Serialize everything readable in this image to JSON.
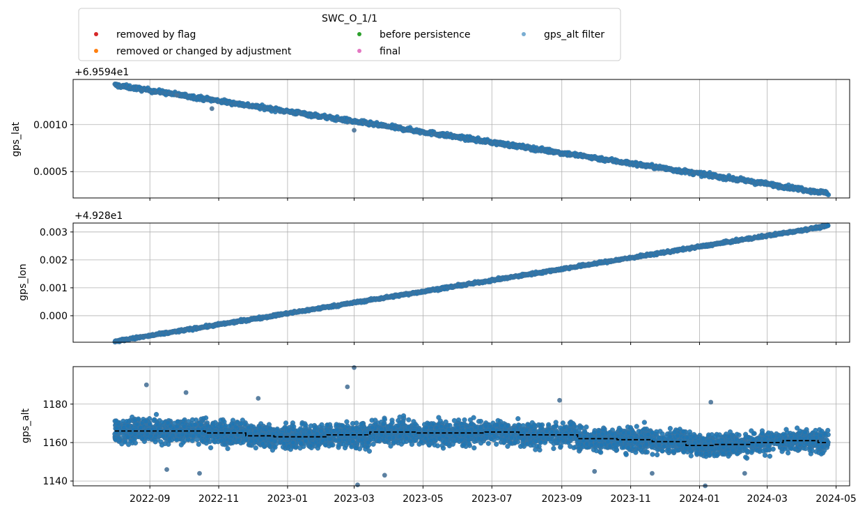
{
  "chart_data": [
    {
      "type": "scatter",
      "panel": "gps_lat",
      "ylabel": "gps_lat",
      "offset_text": "+6.9594e1",
      "offset_value": 69.594,
      "ylim": [
        0.00022,
        0.00148
      ],
      "yticks": [
        0.0005,
        0.001
      ],
      "ytick_labels": [
        "0.0005",
        "0.0010"
      ],
      "grid": true,
      "series": [
        {
          "name": "gps_alt filter",
          "color": "#1f77b4",
          "trend": {
            "x": [
              "2022-08-01",
              "2024-04-24"
            ],
            "y": [
              0.00142,
              0.00027
            ]
          },
          "spread": 2e-05
        }
      ],
      "outliers": [
        {
          "x": "2022-10-26",
          "y": 0.00117
        },
        {
          "x": "2023-03-01",
          "y": 0.00094
        },
        {
          "x": "2022-09-25",
          "y": 0.00131
        }
      ]
    },
    {
      "type": "scatter",
      "panel": "gps_lon",
      "ylabel": "gps_lon",
      "offset_text": "+4.928e1",
      "offset_value": 49.28,
      "ylim": [
        -0.00095,
        0.00332
      ],
      "yticks": [
        0,
        0.001,
        0.002,
        0.003
      ],
      "ytick_labels": [
        "0.000",
        "0.001",
        "0.002",
        "0.003"
      ],
      "grid": true,
      "series": [
        {
          "name": "gps_alt filter",
          "color": "#1f77b4",
          "trend": {
            "x": [
              "2022-08-01",
              "2024-04-24"
            ],
            "y": [
              -0.00092,
              0.00322
            ]
          },
          "spread": 4e-05
        }
      ]
    },
    {
      "type": "scatter",
      "panel": "gps_alt",
      "ylabel": "gps_alt",
      "ylim": [
        1137.5,
        1199.5
      ],
      "yticks": [
        1140,
        1160,
        1180
      ],
      "ytick_labels": [
        "1140",
        "1160",
        "1180"
      ],
      "grid": true,
      "series": [
        {
          "name": "gps_alt filter",
          "color": "#1f77b4",
          "spread": 6
        }
      ],
      "outliers": [
        {
          "x": "2022-08-29",
          "y": 1190
        },
        {
          "x": "2022-10-03",
          "y": 1186
        },
        {
          "x": "2023-03-01",
          "y": 1199
        },
        {
          "x": "2023-02-23",
          "y": 1189
        },
        {
          "x": "2023-03-04",
          "y": 1138
        },
        {
          "x": "2024-01-11",
          "y": 1181
        },
        {
          "x": "2024-01-06",
          "y": 1137.5
        },
        {
          "x": "2022-10-15",
          "y": 1144
        },
        {
          "x": "2023-08-30",
          "y": 1182
        },
        {
          "x": "2022-12-06",
          "y": 1183
        },
        {
          "x": "2023-03-28",
          "y": 1143
        },
        {
          "x": "2022-09-16",
          "y": 1146
        },
        {
          "x": "2023-09-30",
          "y": 1145
        },
        {
          "x": "2023-11-20",
          "y": 1144
        },
        {
          "x": "2024-02-10",
          "y": 1144
        }
      ],
      "step_line": {
        "color": "#000000",
        "style": "dashed",
        "steps": [
          {
            "from": "2022-08-01",
            "to": "2022-10-20",
            "y": 1166
          },
          {
            "from": "2022-10-20",
            "to": "2022-11-25",
            "y": 1165
          },
          {
            "from": "2022-11-25",
            "to": "2022-12-20",
            "y": 1163.5
          },
          {
            "from": "2022-12-20",
            "to": "2023-02-05",
            "y": 1163
          },
          {
            "from": "2023-02-05",
            "to": "2023-03-15",
            "y": 1164
          },
          {
            "from": "2023-03-15",
            "to": "2023-04-25",
            "y": 1165.5
          },
          {
            "from": "2023-04-25",
            "to": "2023-06-25",
            "y": 1165
          },
          {
            "from": "2023-06-25",
            "to": "2023-07-25",
            "y": 1165.5
          },
          {
            "from": "2023-07-25",
            "to": "2023-09-15",
            "y": 1164
          },
          {
            "from": "2023-09-15",
            "to": "2023-10-20",
            "y": 1162
          },
          {
            "from": "2023-10-20",
            "to": "2023-11-20",
            "y": 1161.5
          },
          {
            "from": "2023-11-20",
            "to": "2023-12-20",
            "y": 1160.5
          },
          {
            "from": "2023-12-20",
            "to": "2024-01-15",
            "y": 1158.5
          },
          {
            "from": "2024-01-15",
            "to": "2024-02-15",
            "y": 1159
          },
          {
            "from": "2024-02-15",
            "to": "2024-03-15",
            "y": 1160
          },
          {
            "from": "2024-03-15",
            "to": "2024-04-15",
            "y": 1161
          },
          {
            "from": "2024-04-15",
            "to": "2024-04-24",
            "y": 1160
          }
        ]
      }
    }
  ],
  "x_axis": {
    "type": "date",
    "xlim": [
      "2022-06-25",
      "2024-05-13"
    ],
    "ticks": [
      "2022-09-01",
      "2022-11-01",
      "2023-01-01",
      "2023-03-01",
      "2023-05-01",
      "2023-07-01",
      "2023-09-01",
      "2023-11-01",
      "2024-01-01",
      "2024-03-01",
      "2024-05-01"
    ],
    "tick_labels": [
      "2022-09",
      "2022-11",
      "2023-01",
      "2023-03",
      "2023-05",
      "2023-07",
      "2023-09",
      "2023-11",
      "2024-01",
      "2024-03",
      "2024-05"
    ],
    "shared": true
  },
  "legend": {
    "title": "SWC_O_1/1",
    "placement": "top",
    "columns": 3,
    "entries": [
      {
        "label": "removed by flag",
        "color": "#d62728"
      },
      {
        "label": "removed or changed by adjustment",
        "color": "#ff7f0e"
      },
      {
        "label": "before persistence",
        "color": "#2ca02c"
      },
      {
        "label": "final",
        "color": "#e377c2"
      },
      {
        "label": "gps_alt filter",
        "color": "#1f77b4"
      }
    ]
  }
}
